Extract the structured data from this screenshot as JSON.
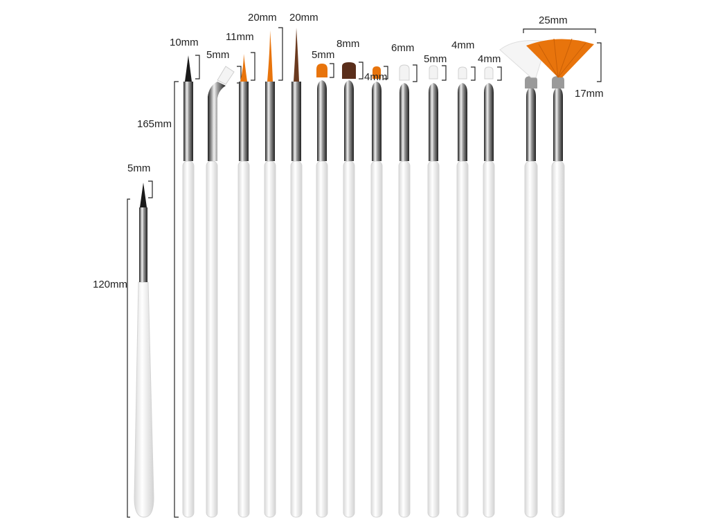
{
  "labels": {
    "short_brush_length": "120mm",
    "short_brush_tip": "5mm",
    "long_brush_length": "165mm",
    "liner_tip": "10mm",
    "angled_tip": "5mm",
    "round_small_tip": "11mm",
    "striper_orange_tip": "20mm",
    "striper_brown_tip": "20mm",
    "flat_orange_tip": "5mm",
    "flat_brown_tip": "8mm",
    "flat_orange_small_tip": "4mm",
    "flat_white_tip": "6mm",
    "flat_white_medium_tip": "5mm",
    "flat_white_small_tip": "4mm",
    "flat_white_smallest_tip": "4mm",
    "fan_width": "25mm",
    "fan_height": "17mm"
  },
  "colors": {
    "handle": "#ffffff",
    "handle_edge": "#d8d8d8",
    "ferrule_dark": "#2b2b2b",
    "ferrule_light": "#e6e6e6",
    "bristle_orange": "#e8740c",
    "bristle_brown": "#5a2e1b",
    "bristle_white": "#f3f3f3",
    "bracket": "#222222"
  }
}
